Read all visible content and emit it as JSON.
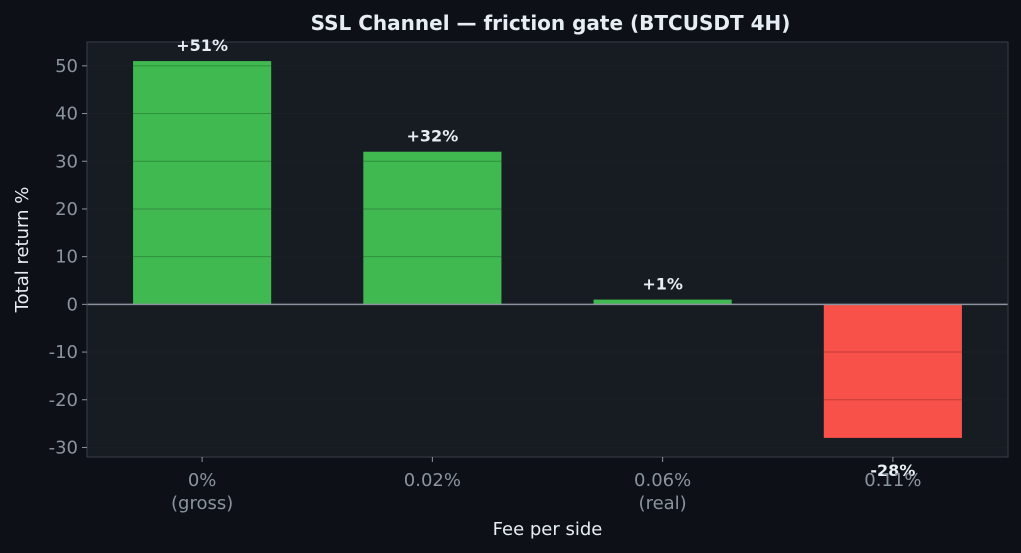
{
  "colors": {
    "page_bg": "#0d1017",
    "plot_bg": "#171b22",
    "frame": "#3a3f48",
    "grid": "#232830",
    "zero_line": "#8b949e",
    "text_title": "#e6edf3",
    "text_axis": "#8b949e",
    "positive": "#3fb950",
    "negative": "#f85149",
    "label_text": "#e6edf3"
  },
  "chart_data": {
    "type": "bar",
    "title": "SSL Channel — friction gate (BTCUSDT 4H)",
    "xlabel": "Fee per side",
    "ylabel": "Total return %",
    "categories": [
      [
        "0%",
        "(gross)"
      ],
      [
        "0.02%"
      ],
      [
        "0.06%",
        "(real)"
      ],
      [
        "0.11%"
      ]
    ],
    "values": [
      51,
      32,
      1,
      -28
    ],
    "data_labels": [
      "+51%",
      "+32%",
      "+1%",
      "-28%"
    ],
    "ylim": [
      -32,
      55
    ],
    "yticks": [
      -30,
      -20,
      -10,
      0,
      10,
      20,
      30,
      40,
      50
    ],
    "ytick_labels": [
      "-30",
      "-20",
      "-10",
      "0",
      "10",
      "20",
      "30",
      "40",
      "50"
    ],
    "grid": true,
    "legend": "none"
  }
}
